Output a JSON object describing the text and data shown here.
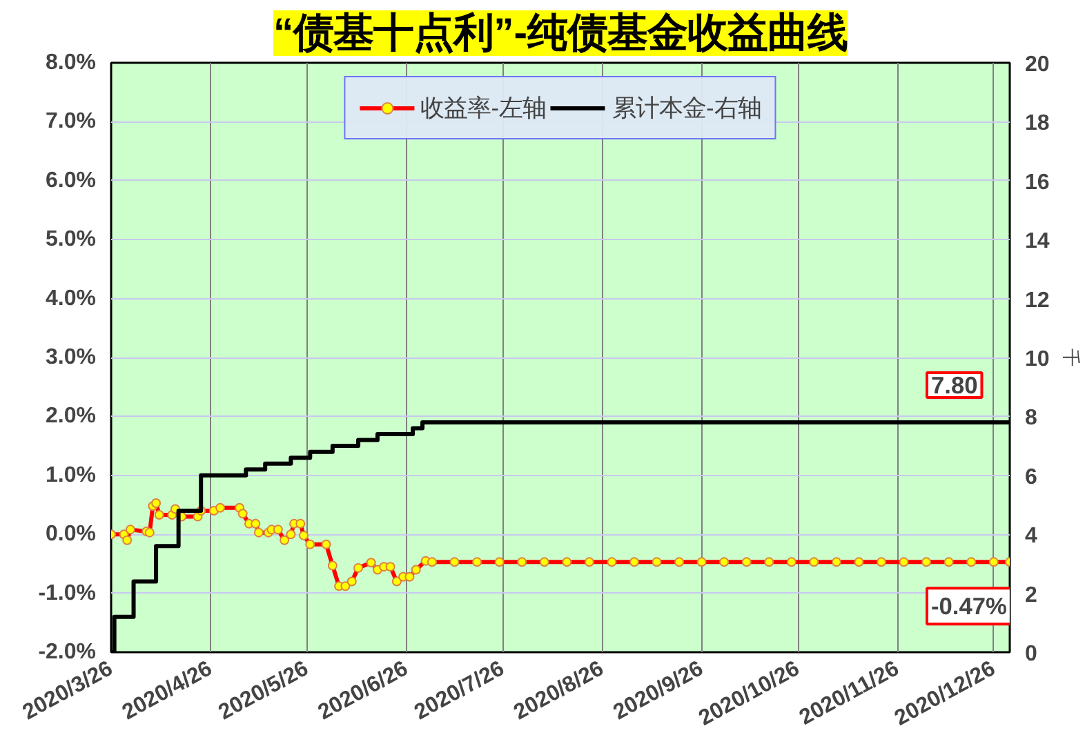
{
  "chart_data": {
    "type": "line",
    "title": "“债基十点利”-纯债基金收益曲线",
    "y2label": "千",
    "xlim": [
      "2020-03-26",
      "2020-12-31"
    ],
    "xticks": [
      {
        "value": "2020-03-26",
        "label": "2020/3/26"
      },
      {
        "value": "2020-04-26",
        "label": "2020/4/26"
      },
      {
        "value": "2020-05-26",
        "label": "2020/5/26"
      },
      {
        "value": "2020-06-26",
        "label": "2020/6/26"
      },
      {
        "value": "2020-07-26",
        "label": "2020/7/26"
      },
      {
        "value": "2020-08-26",
        "label": "2020/8/26"
      },
      {
        "value": "2020-09-26",
        "label": "2020/9/26"
      },
      {
        "value": "2020-10-26",
        "label": "2020/10/26"
      },
      {
        "value": "2020-11-26",
        "label": "2020/11/26"
      },
      {
        "value": "2020-12-26",
        "label": "2020/12/26"
      }
    ],
    "ylim": [
      -2,
      8
    ],
    "yticks": [
      {
        "value": -2,
        "label": "-2.0%"
      },
      {
        "value": -1,
        "label": "-1.0%"
      },
      {
        "value": 0,
        "label": "0.0%"
      },
      {
        "value": 1,
        "label": "1.0%"
      },
      {
        "value": 2,
        "label": "2.0%"
      },
      {
        "value": 3,
        "label": "3.0%"
      },
      {
        "value": 4,
        "label": "4.0%"
      },
      {
        "value": 5,
        "label": "5.0%"
      },
      {
        "value": 6,
        "label": "6.0%"
      },
      {
        "value": 7,
        "label": "7.0%"
      },
      {
        "value": 8,
        "label": "8.0%"
      }
    ],
    "y2lim": [
      0,
      20
    ],
    "y2ticks": [
      0,
      2,
      4,
      6,
      8,
      10,
      12,
      14,
      16,
      18,
      20
    ],
    "grid": true,
    "legend": "top",
    "series": [
      {
        "name": "收益率-左轴",
        "color": "#ff0000",
        "marker": "circle",
        "x": [
          "2020-03-26",
          "2020-03-30",
          "2020-03-31",
          "2020-04-01",
          "2020-04-06",
          "2020-04-07",
          "2020-04-08",
          "2020-04-09",
          "2020-04-10",
          "2020-04-14",
          "2020-04-15",
          "2020-04-17",
          "2020-04-22",
          "2020-04-23",
          "2020-04-27",
          "2020-04-29",
          "2020-05-05",
          "2020-05-06",
          "2020-05-08",
          "2020-05-10",
          "2020-05-11",
          "2020-05-14",
          "2020-05-15",
          "2020-05-17",
          "2020-05-19",
          "2020-05-21",
          "2020-05-22",
          "2020-05-24",
          "2020-05-25",
          "2020-05-27",
          "2020-06-01",
          "2020-06-03",
          "2020-06-05",
          "2020-06-07",
          "2020-06-09",
          "2020-06-11",
          "2020-06-15",
          "2020-06-17",
          "2020-06-19",
          "2020-06-21",
          "2020-06-23",
          "2020-06-25",
          "2020-06-27",
          "2020-06-29",
          "2020-07-02",
          "2020-07-04",
          "2020-07-11",
          "2020-07-18",
          "2020-07-25",
          "2020-08-01",
          "2020-08-08",
          "2020-08-15",
          "2020-08-22",
          "2020-08-29",
          "2020-09-05",
          "2020-09-12",
          "2020-09-19",
          "2020-09-26",
          "2020-10-03",
          "2020-10-10",
          "2020-10-17",
          "2020-10-24",
          "2020-10-31",
          "2020-11-07",
          "2020-11-14",
          "2020-11-21",
          "2020-11-28",
          "2020-12-05",
          "2020-12-12",
          "2020-12-19",
          "2020-12-26",
          "2020-12-31"
        ],
        "values": [
          0.0,
          0.0,
          -0.1,
          0.08,
          0.05,
          0.03,
          0.48,
          0.53,
          0.33,
          0.33,
          0.43,
          0.3,
          0.3,
          0.4,
          0.4,
          0.45,
          0.45,
          0.35,
          0.18,
          0.18,
          0.03,
          0.03,
          0.08,
          0.08,
          -0.1,
          0.0,
          0.18,
          0.18,
          -0.02,
          -0.17,
          -0.17,
          -0.53,
          -0.88,
          -0.88,
          -0.8,
          -0.57,
          -0.48,
          -0.6,
          -0.55,
          -0.55,
          -0.8,
          -0.72,
          -0.72,
          -0.6,
          -0.45,
          -0.47,
          -0.47,
          -0.47,
          -0.47,
          -0.47,
          -0.47,
          -0.47,
          -0.47,
          -0.47,
          -0.47,
          -0.47,
          -0.47,
          -0.47,
          -0.47,
          -0.47,
          -0.47,
          -0.47,
          -0.47,
          -0.47,
          -0.47,
          -0.47,
          -0.47,
          -0.47,
          -0.47,
          -0.47,
          -0.47,
          -0.47
        ]
      },
      {
        "name": "累计本金-右轴",
        "type": "step",
        "axis": "y2",
        "color": "#000000",
        "marker": "none",
        "x": [
          "2020-03-26",
          "2020-03-27",
          "2020-04-02",
          "2020-04-09",
          "2020-04-16",
          "2020-04-23",
          "2020-05-07",
          "2020-05-13",
          "2020-05-21",
          "2020-05-27",
          "2020-06-03",
          "2020-06-11",
          "2020-06-17",
          "2020-06-28",
          "2020-07-01",
          "2020-12-31"
        ],
        "values": [
          0,
          1.2,
          2.4,
          3.6,
          4.8,
          6.0,
          6.2,
          6.4,
          6.6,
          6.8,
          7.0,
          7.2,
          7.4,
          7.6,
          7.8,
          7.8
        ]
      }
    ],
    "annotations": [
      "-0.47%",
      "7.80"
    ]
  }
}
